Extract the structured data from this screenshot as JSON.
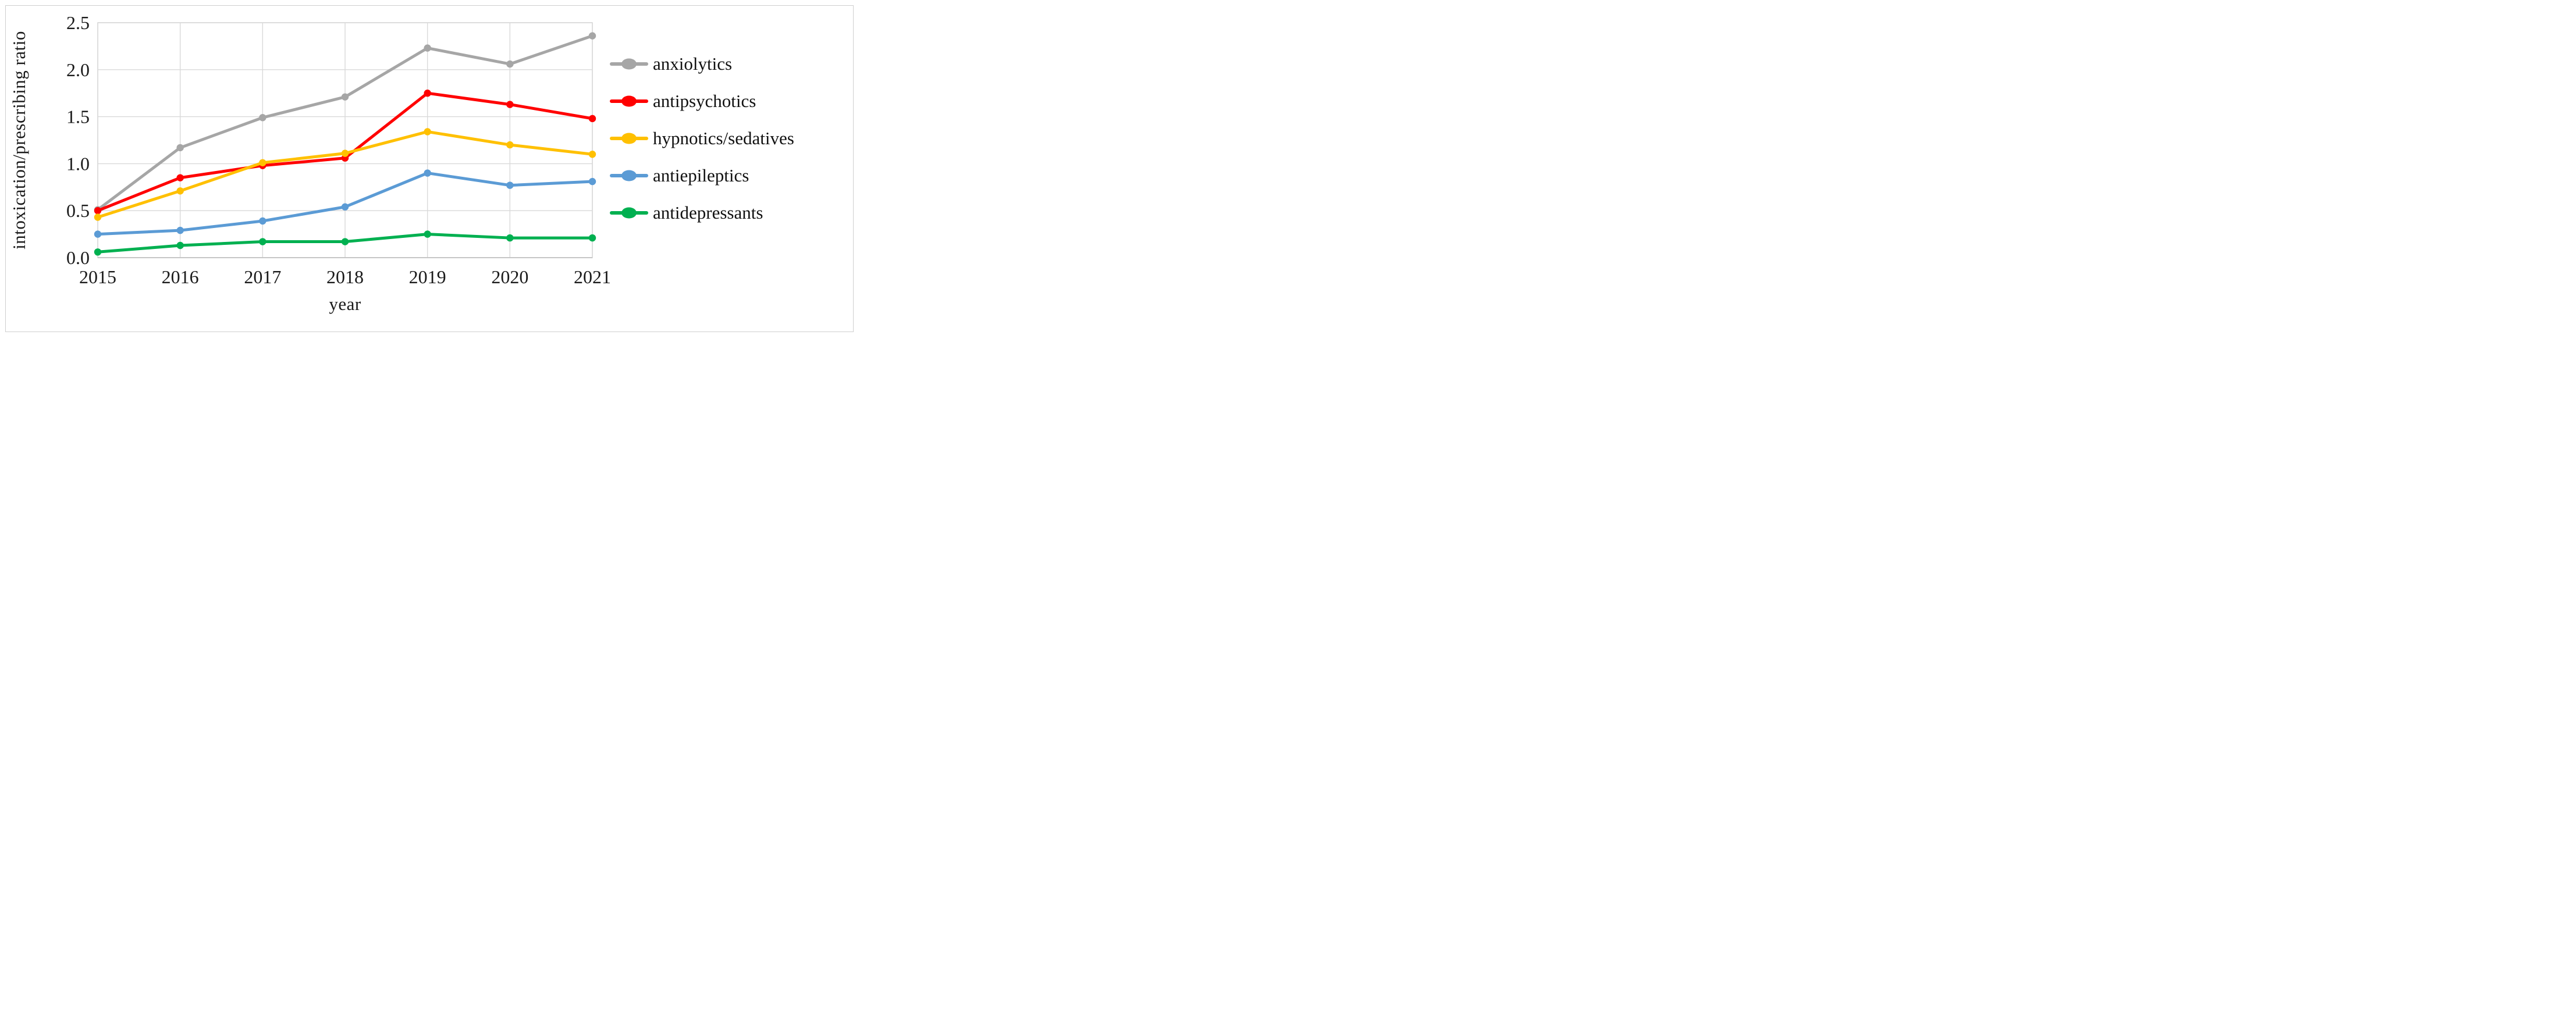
{
  "figure": {
    "kind": "line-chart-figure",
    "background": "#ffffff",
    "frame_color": "#cfcfcf"
  },
  "axes": {
    "y_title": "intoxication/prescribing ratio",
    "x_title": "year",
    "y_ticks": [
      "0.0",
      "0.5",
      "1.0",
      "1.5",
      "2.0",
      "2.5"
    ],
    "x_ticks": [
      "2015",
      "2016",
      "2017",
      "2018",
      "2019",
      "2020",
      "2021"
    ],
    "gridline_color": "#d9d9d9",
    "tick_text_color": "#1a1a1a"
  },
  "chart_data": {
    "type": "line",
    "title": "",
    "xlabel": "year",
    "ylabel": "intoxication/prescribing ratio",
    "categories": [
      "2015",
      "2016",
      "2017",
      "2018",
      "2019",
      "2020",
      "2021"
    ],
    "ylim": [
      0,
      2.5
    ],
    "y_tick_step": 0.5,
    "grid": true,
    "legend_position": "right",
    "series": [
      {
        "name": "anxiolytics",
        "color": "#a6a6a6",
        "values": [
          0.51,
          1.17,
          1.49,
          1.71,
          2.23,
          2.06,
          2.36
        ]
      },
      {
        "name": "antipsychotics",
        "color": "#ff0000",
        "values": [
          0.5,
          0.85,
          0.98,
          1.06,
          1.75,
          1.63,
          1.48
        ]
      },
      {
        "name": "hypnotics/sedatives",
        "color": "#ffc000",
        "values": [
          0.43,
          0.71,
          1.01,
          1.11,
          1.34,
          1.2,
          1.1
        ]
      },
      {
        "name": "antiepileptics",
        "color": "#5b9bd5",
        "values": [
          0.25,
          0.29,
          0.39,
          0.54,
          0.9,
          0.77,
          0.81
        ]
      },
      {
        "name": "antidepressants",
        "color": "#00b050",
        "values": [
          0.06,
          0.13,
          0.17,
          0.17,
          0.25,
          0.21,
          0.21
        ]
      }
    ]
  }
}
